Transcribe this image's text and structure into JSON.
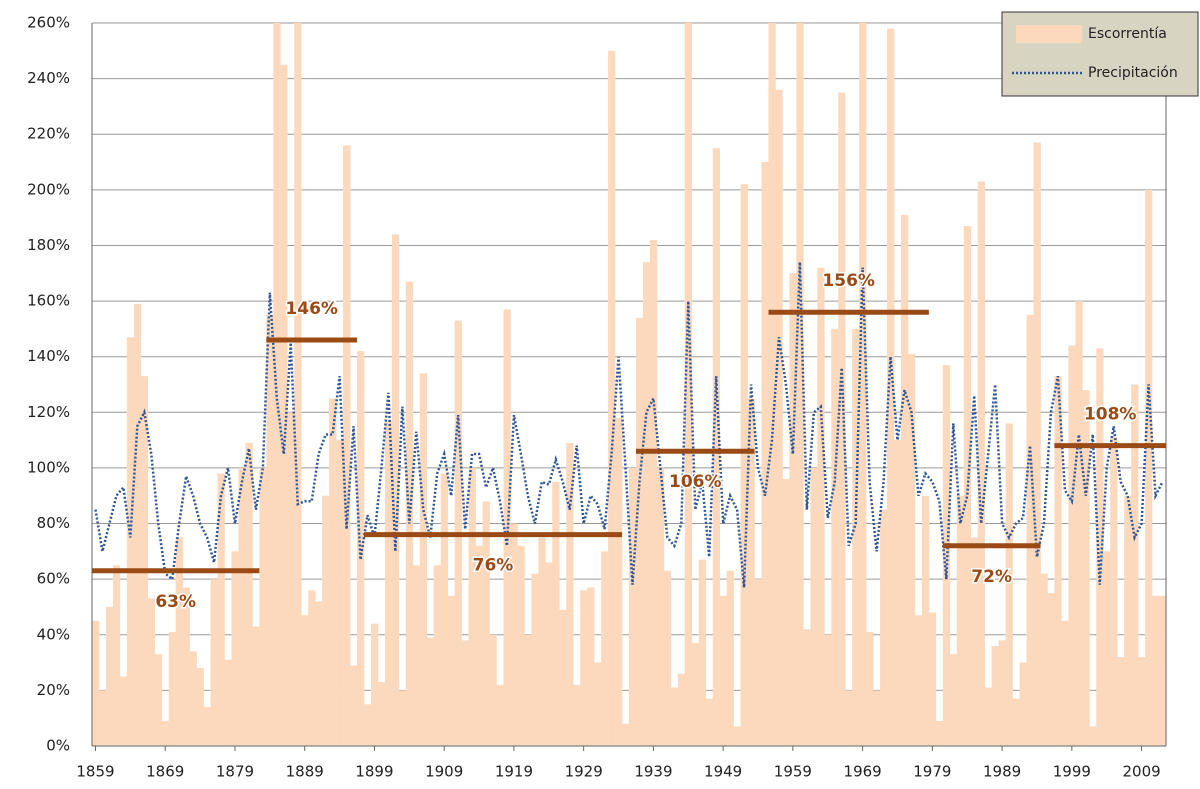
{
  "chart_data": {
    "type": "bar-line",
    "x": [
      1859,
      1860,
      1861,
      1862,
      1863,
      1864,
      1865,
      1866,
      1867,
      1868,
      1869,
      1870,
      1871,
      1872,
      1873,
      1874,
      1875,
      1876,
      1877,
      1878,
      1879,
      1880,
      1881,
      1882,
      1883,
      1884,
      1885,
      1886,
      1887,
      1888,
      1889,
      1890,
      1891,
      1892,
      1893,
      1894,
      1895,
      1896,
      1897,
      1898,
      1899,
      1900,
      1901,
      1902,
      1903,
      1904,
      1905,
      1906,
      1907,
      1908,
      1909,
      1910,
      1911,
      1912,
      1913,
      1914,
      1915,
      1916,
      1917,
      1918,
      1919,
      1920,
      1921,
      1922,
      1923,
      1924,
      1925,
      1926,
      1927,
      1928,
      1929,
      1930,
      1931,
      1932,
      1933,
      1934,
      1935,
      1936,
      1937,
      1938,
      1939,
      1940,
      1941,
      1942,
      1943,
      1944,
      1945,
      1946,
      1947,
      1948,
      1949,
      1950,
      1951,
      1952,
      1953,
      1954,
      1955,
      1956,
      1957,
      1958,
      1959,
      1960,
      1961,
      1962,
      1963,
      1964,
      1965,
      1966,
      1967,
      1968,
      1969,
      1970,
      1971,
      1972,
      1973,
      1974,
      1975,
      1976,
      1977,
      1978,
      1979,
      1980,
      1981,
      1982,
      1983,
      1984,
      1985,
      1986,
      1987,
      1988,
      1989,
      1990,
      1991,
      1992,
      1993,
      1994,
      1995,
      1996,
      1997,
      1998,
      1999,
      2000,
      2001,
      2002,
      2003,
      2004,
      2005,
      2006,
      2007,
      2008,
      2009,
      2010,
      2011,
      2012
    ],
    "series": [
      {
        "name": "Escorrentía",
        "color": "#fcd9bd",
        "kind": "bar",
        "values": [
          45,
          20,
          50,
          65,
          25,
          147,
          159,
          133,
          53,
          33,
          9,
          41,
          75,
          57,
          34,
          28,
          14,
          60,
          98,
          31,
          70,
          100,
          109,
          43,
          100,
          155,
          260,
          245,
          120,
          260,
          47,
          56,
          52,
          90,
          125,
          110,
          216,
          29,
          142,
          15,
          44,
          23,
          117,
          184,
          20,
          167,
          65,
          134,
          39,
          65,
          98,
          54,
          153,
          38,
          100,
          72,
          88,
          40,
          22,
          157,
          80,
          72,
          40,
          62,
          75,
          66,
          95,
          49,
          109,
          22,
          56,
          57,
          30,
          70,
          250,
          118,
          8,
          100,
          154,
          174,
          182,
          100,
          63,
          21,
          26,
          260,
          37,
          67,
          17,
          215,
          54,
          63,
          7,
          202,
          125,
          60,
          210,
          260,
          236,
          96,
          170,
          260,
          42,
          100,
          172,
          40,
          150,
          235,
          20,
          150,
          260,
          41,
          20,
          85,
          258,
          110,
          191,
          141,
          47,
          90,
          48,
          9,
          137,
          33,
          90,
          187,
          75,
          203,
          21,
          36,
          38,
          116,
          17,
          30,
          155,
          217,
          62,
          55,
          133,
          45,
          144,
          160,
          128,
          7,
          143,
          70,
          111,
          32,
          90,
          130,
          32,
          200,
          54,
          54
        ]
      },
      {
        "name": "Precipitación",
        "color": "#2f5597",
        "kind": "line",
        "values": [
          85,
          70,
          80,
          90,
          93,
          75,
          115,
          120,
          105,
          80,
          62,
          60,
          80,
          97,
          90,
          80,
          75,
          66,
          90,
          100,
          80,
          95,
          107,
          85,
          100,
          163,
          125,
          105,
          145,
          87,
          88,
          88,
          105,
          112,
          112,
          133,
          78,
          115,
          67,
          83,
          75,
          100,
          127,
          70,
          122,
          80,
          113,
          85,
          75,
          98,
          105,
          90,
          119,
          78,
          105,
          105,
          93,
          100,
          88,
          72,
          119,
          105,
          90,
          80,
          95,
          94,
          103,
          95,
          85,
          108,
          80,
          90,
          87,
          78,
          105,
          140,
          100,
          58,
          95,
          120,
          125,
          100,
          75,
          72,
          80,
          160,
          85,
          95,
          68,
          133,
          80,
          90,
          85,
          57,
          130,
          100,
          90,
          110,
          147,
          130,
          105,
          174,
          85,
          120,
          122,
          82,
          95,
          136,
          72,
          80,
          172,
          95,
          70,
          95,
          140,
          110,
          128,
          120,
          90,
          98,
          95,
          88,
          60,
          116,
          80,
          90,
          126,
          80,
          105,
          130,
          80,
          75,
          80,
          82,
          108,
          68,
          80,
          120,
          133,
          92,
          88,
          112,
          90,
          112,
          58,
          100,
          115,
          95,
          90,
          75,
          80,
          130,
          90,
          95
        ]
      }
    ],
    "periods": [
      {
        "start": 1859,
        "end": 1882,
        "value": 63,
        "label": "63%"
      },
      {
        "start": 1884,
        "end": 1896,
        "value": 146,
        "label": "146%"
      },
      {
        "start": 1898,
        "end": 1934,
        "value": 76,
        "label": "76%"
      },
      {
        "start": 1937,
        "end": 1953,
        "value": 106,
        "label": "106%"
      },
      {
        "start": 1956,
        "end": 1978,
        "value": 156,
        "label": "156%"
      },
      {
        "start": 1981,
        "end": 1994,
        "value": 72,
        "label": "72%"
      },
      {
        "start": 1997,
        "end": 2012,
        "value": 108,
        "label": "108%"
      }
    ],
    "period_color": "#9a4a14",
    "xlim": [
      1858.5,
      2012.5
    ],
    "xticks": [
      1859,
      1869,
      1879,
      1889,
      1899,
      1909,
      1919,
      1929,
      1939,
      1949,
      1959,
      1969,
      1979,
      1989,
      1999,
      2009
    ],
    "ylim": [
      0,
      260
    ],
    "yticks": [
      {
        "value": 0,
        "label": "0%"
      },
      {
        "value": 20,
        "label": "20%"
      },
      {
        "value": 40,
        "label": "40%"
      },
      {
        "value": 60,
        "label": "60%"
      },
      {
        "value": 80,
        "label": "80%"
      },
      {
        "value": 100,
        "label": "100%"
      },
      {
        "value": 120,
        "label": "120%"
      },
      {
        "value": 140,
        "label": "140%"
      },
      {
        "value": 160,
        "label": "160%"
      },
      {
        "value": 180,
        "label": "180%"
      },
      {
        "value": 200,
        "label": "200%"
      },
      {
        "value": 220,
        "label": "220%"
      },
      {
        "value": 240,
        "label": "240%"
      },
      {
        "value": 260,
        "label": "260%"
      }
    ],
    "grid": true,
    "legend": "top-right"
  }
}
